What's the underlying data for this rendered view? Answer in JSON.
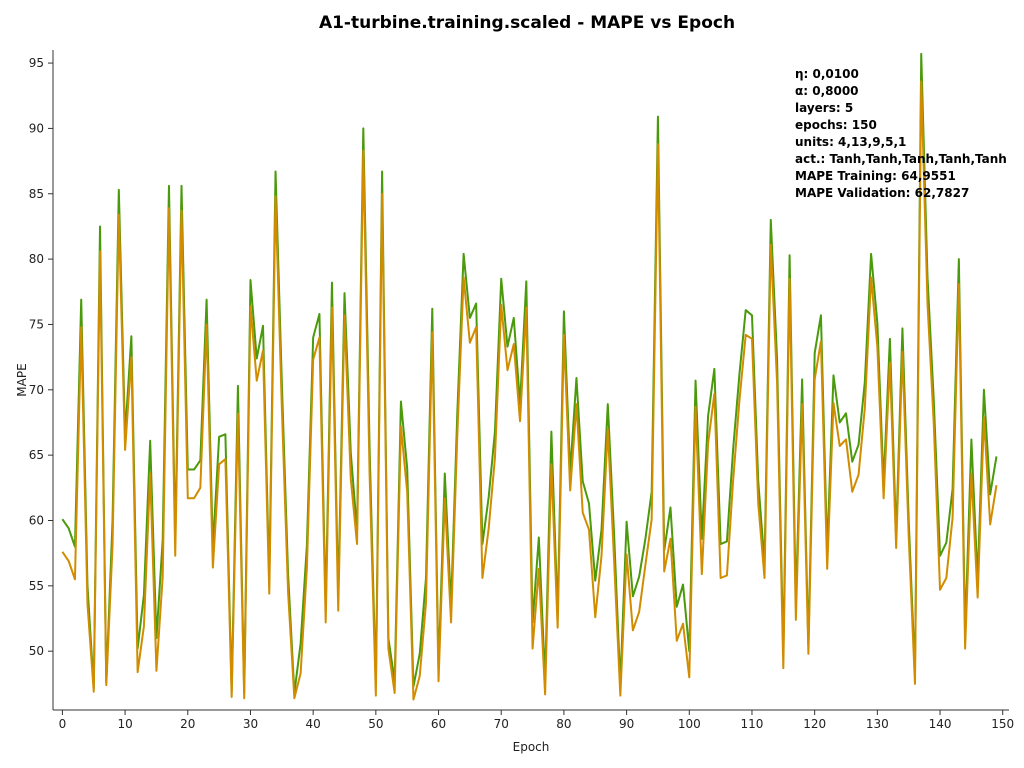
{
  "chart_data": {
    "type": "line",
    "title": "A1-turbine.training.scaled - MAPE vs Epoch",
    "xlabel": "Epoch",
    "ylabel": "MAPE",
    "xlim": [
      -1.5,
      151
    ],
    "ylim": [
      45.5,
      96
    ],
    "xticks": [
      0,
      10,
      20,
      30,
      40,
      50,
      60,
      70,
      80,
      90,
      100,
      110,
      120,
      130,
      140,
      150
    ],
    "yticks": [
      50,
      55,
      60,
      65,
      70,
      75,
      80,
      85,
      90,
      95
    ],
    "grid": false,
    "legend": "none",
    "x_start": 0,
    "series": [
      {
        "color": "#4a9a0c",
        "values": [
          60.1,
          59.4,
          58.0,
          76.9,
          55.0,
          47.2,
          82.5,
          47.6,
          60.0,
          85.3,
          66.5,
          74.1,
          50.2,
          54.3,
          66.1,
          51.0,
          58.5,
          85.6,
          58.4,
          85.6,
          63.9,
          63.9,
          64.6,
          76.9,
          57.9,
          66.4,
          66.6,
          46.9,
          70.3,
          46.8,
          78.4,
          72.4,
          74.9,
          55.3,
          86.7,
          70.6,
          55.9,
          46.8,
          50.6,
          58.1,
          74.0,
          75.8,
          53.2,
          78.2,
          54.1,
          77.4,
          65.2,
          59.2,
          90.0,
          65.6,
          47.4,
          86.7,
          51.0,
          47.7,
          69.1,
          64.0,
          47.3,
          49.8,
          55.6,
          76.2,
          48.5,
          63.6,
          53.5,
          68.3,
          80.4,
          75.5,
          76.6,
          58.2,
          61.8,
          66.8,
          78.5,
          73.3,
          75.5,
          68.9,
          78.3,
          52.2,
          58.7,
          47.8,
          66.8,
          52.8,
          76.0,
          63.7,
          70.9,
          63.0,
          61.3,
          55.4,
          59.3,
          68.9,
          59.0,
          47.5,
          59.9,
          54.2,
          55.7,
          58.6,
          62.2,
          90.9,
          57.7,
          61.0,
          53.4,
          55.1,
          50.0,
          70.7,
          58.6,
          68.0,
          71.6,
          58.2,
          58.4,
          65.5,
          71.2,
          76.1,
          75.7,
          63.0,
          56.7,
          83.0,
          72.4,
          49.7,
          80.3,
          53.6,
          70.8,
          50.4,
          72.8,
          75.7,
          57.6,
          71.1,
          67.5,
          68.2,
          64.5,
          65.8,
          70.6,
          80.4,
          75.1,
          62.8,
          73.9,
          58.8,
          74.7,
          60.0,
          48.4,
          95.7,
          78.6,
          69.2,
          57.3,
          58.3,
          62.4,
          80.0,
          51.3,
          66.2,
          55.4,
          70.0,
          62.0,
          64.9
        ]
      },
      {
        "color": "#d18c00",
        "values": [
          57.6,
          56.9,
          55.5,
          74.8,
          53.6,
          46.9,
          80.6,
          47.4,
          58.1,
          83.4,
          65.4,
          72.5,
          48.4,
          51.9,
          63.6,
          48.5,
          55.7,
          83.9,
          57.3,
          83.7,
          61.7,
          61.7,
          62.5,
          75.0,
          56.4,
          64.3,
          64.7,
          46.5,
          68.2,
          46.4,
          76.4,
          70.7,
          73.0,
          54.4,
          84.8,
          68.7,
          54.5,
          46.4,
          48.3,
          56.4,
          72.3,
          74.0,
          52.2,
          76.3,
          53.1,
          75.7,
          63.2,
          58.2,
          88.3,
          63.6,
          46.6,
          85.0,
          50.2,
          46.8,
          67.2,
          62.2,
          46.3,
          48.1,
          53.7,
          74.4,
          47.7,
          61.7,
          52.2,
          66.6,
          78.6,
          73.6,
          74.8,
          55.6,
          59.4,
          64.8,
          76.5,
          71.5,
          73.5,
          67.6,
          76.3,
          50.2,
          56.3,
          46.7,
          64.3,
          51.8,
          74.2,
          62.3,
          68.9,
          60.6,
          59.3,
          52.6,
          57.3,
          67.0,
          57.0,
          46.6,
          57.4,
          51.6,
          53.0,
          56.6,
          60.1,
          88.8,
          56.1,
          58.6,
          50.8,
          52.1,
          48.0,
          68.7,
          55.9,
          65.9,
          69.7,
          55.6,
          55.8,
          63.1,
          69.2,
          74.2,
          73.9,
          61.3,
          55.6,
          81.1,
          70.6,
          48.7,
          78.5,
          52.4,
          68.9,
          49.8,
          70.8,
          73.7,
          56.3,
          69.0,
          65.7,
          66.2,
          62.2,
          63.5,
          68.6,
          78.6,
          73.3,
          61.7,
          72.1,
          57.9,
          72.9,
          58.8,
          47.5,
          93.6,
          76.6,
          67.4,
          54.7,
          55.6,
          60.2,
          78.1,
          50.2,
          63.6,
          54.1,
          67.9,
          59.7,
          62.7
        ]
      }
    ],
    "info_box": [
      "η: 0,0100",
      "α: 0,8000",
      "layers: 5",
      "epochs: 150",
      "units: 4,13,9,5,1",
      "act.: Tanh,Tanh,Tanh,Tanh,Tanh",
      "MAPE Training: 64,9551",
      "MAPE Validation: 62,7827"
    ]
  }
}
